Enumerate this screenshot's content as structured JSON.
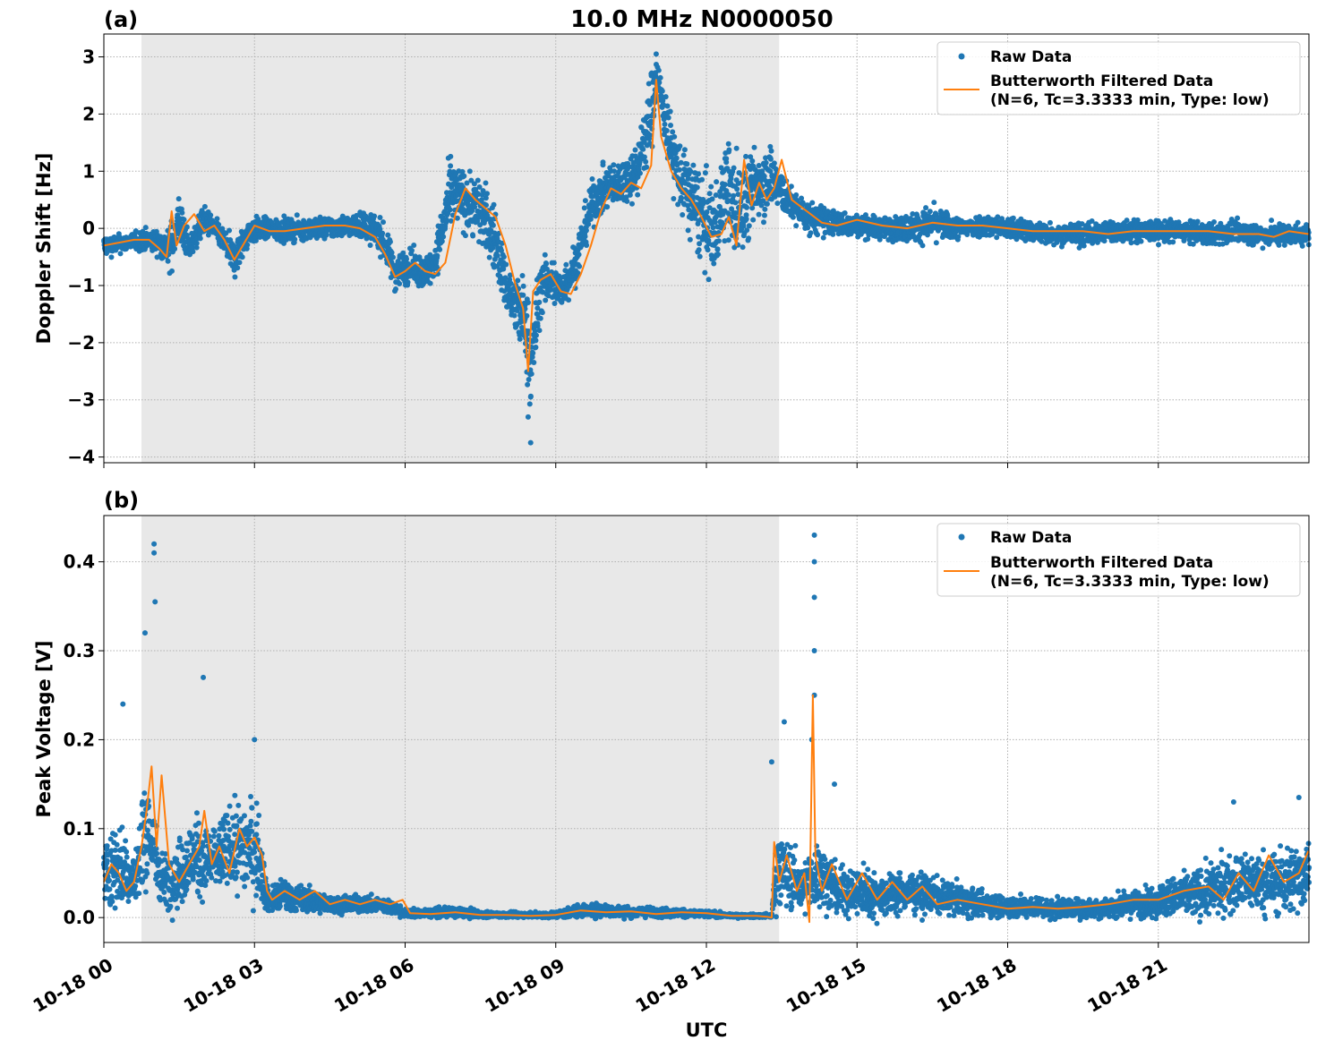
{
  "figure": {
    "title": "10.0 MHz N0000050",
    "xlabel": "UTC",
    "colors": {
      "raw": "#1f77b4",
      "filtered": "#ff7f0e",
      "shade": "#e8e8e8",
      "grid": "#b0b0b0"
    }
  },
  "chart_data": [
    {
      "type": "scatter",
      "panel_label": "(a)",
      "ylabel": "Doppler Shift [Hz]",
      "xlim_hours": [
        0,
        24
      ],
      "ylim": [
        -4.1,
        3.4
      ],
      "yticks": [
        -4,
        -3,
        -2,
        -1,
        0,
        1,
        2,
        3
      ],
      "ytick_labels": [
        "−4",
        "−3",
        "−2",
        "−1",
        "0",
        "1",
        "2",
        "3"
      ],
      "grid": true,
      "legend": {
        "placement": "top-right",
        "entries": [
          "Raw Data",
          "Butterworth Filtered Data",
          "(N=6, Tc=3.3333 min, Type: low)"
        ]
      },
      "shaded_interval_hours": [
        0.75,
        13.45
      ],
      "series": [
        {
          "name": "Raw Data",
          "style": "points",
          "x_hours": [
            0,
            0.5,
            0.8,
            1.1,
            1.3,
            1.5,
            1.7,
            2.0,
            2.3,
            2.6,
            2.9,
            3.2,
            3.6,
            4.0,
            4.4,
            4.8,
            5.2,
            5.5,
            5.8,
            6.1,
            6.4,
            6.6,
            6.9,
            7.2,
            7.5,
            7.8,
            8.0,
            8.2,
            8.4,
            8.5,
            8.7,
            8.9,
            9.1,
            9.4,
            9.7,
            10.0,
            10.3,
            10.6,
            10.9,
            11.0,
            11.3,
            11.5,
            11.8,
            12.0,
            12.2,
            12.4,
            12.6,
            12.8,
            13.0,
            13.3,
            13.6,
            14.0,
            14.5,
            15.0,
            15.5,
            16.0,
            16.5,
            17.0,
            17.5,
            18.0,
            18.5,
            19.0,
            19.5,
            20.0,
            20.5,
            21.0,
            21.5,
            22.0,
            22.5,
            23.0,
            23.5,
            23.99
          ],
          "y_center": [
            -0.3,
            -0.25,
            -0.2,
            -0.25,
            -0.4,
            0.15,
            -0.35,
            0.15,
            -0.1,
            -0.55,
            -0.05,
            0.0,
            -0.05,
            0.0,
            0.0,
            0.05,
            0.05,
            -0.1,
            -0.75,
            -0.65,
            -0.8,
            -0.55,
            0.6,
            0.5,
            0.3,
            -0.2,
            -1.0,
            -1.4,
            -1.6,
            -2.5,
            -1.0,
            -0.9,
            -1.1,
            -0.6,
            0.4,
            0.7,
            0.8,
            1.0,
            2.0,
            2.7,
            1.4,
            0.8,
            0.4,
            0.0,
            0.0,
            0.8,
            0.2,
            0.5,
            0.8,
            0.9,
            0.5,
            0.2,
            0.1,
            0.05,
            0.0,
            0.0,
            0.1,
            0.0,
            0.05,
            0.0,
            -0.05,
            -0.1,
            -0.1,
            -0.05,
            -0.05,
            -0.05,
            -0.05,
            -0.1,
            -0.05,
            -0.1,
            -0.1,
            -0.1
          ],
          "y_spread": [
            0.2,
            0.15,
            0.2,
            0.2,
            0.4,
            0.5,
            0.2,
            0.25,
            0.2,
            0.35,
            0.25,
            0.2,
            0.2,
            0.2,
            0.2,
            0.2,
            0.25,
            0.3,
            0.35,
            0.3,
            0.3,
            0.35,
            0.6,
            0.55,
            0.65,
            0.6,
            0.5,
            0.6,
            0.8,
            0.9,
            0.5,
            0.45,
            0.4,
            0.4,
            0.4,
            0.4,
            0.4,
            0.5,
            0.8,
            0.4,
            0.6,
            0.7,
            0.8,
            0.9,
            0.8,
            0.9,
            0.9,
            0.8,
            0.7,
            0.6,
            0.3,
            0.3,
            0.25,
            0.2,
            0.2,
            0.25,
            0.3,
            0.2,
            0.2,
            0.2,
            0.2,
            0.2,
            0.2,
            0.2,
            0.2,
            0.2,
            0.2,
            0.2,
            0.2,
            0.2,
            0.2,
            0.2
          ],
          "highlights": [
            {
              "x": 8.5,
              "y": -3.75
            },
            {
              "x": 11.0,
              "y": 3.05
            },
            {
              "x": 12.6,
              "y": 1.4
            },
            {
              "x": 8.45,
              "y": -3.3
            }
          ]
        },
        {
          "name": "Butterworth Filtered Data",
          "style": "line",
          "x_hours": [
            0,
            0.3,
            0.6,
            0.9,
            1.1,
            1.25,
            1.35,
            1.45,
            1.6,
            1.8,
            2.0,
            2.2,
            2.4,
            2.6,
            2.8,
            3.0,
            3.3,
            3.6,
            4.0,
            4.4,
            4.8,
            5.1,
            5.4,
            5.6,
            5.8,
            6.0,
            6.2,
            6.4,
            6.6,
            6.8,
            7.0,
            7.2,
            7.4,
            7.6,
            7.8,
            8.0,
            8.2,
            8.35,
            8.45,
            8.55,
            8.7,
            8.9,
            9.1,
            9.3,
            9.5,
            9.7,
            9.9,
            10.1,
            10.3,
            10.5,
            10.7,
            10.9,
            11.0,
            11.1,
            11.3,
            11.5,
            11.7,
            11.9,
            12.1,
            12.3,
            12.45,
            12.6,
            12.75,
            12.9,
            13.05,
            13.2,
            13.35,
            13.5,
            13.7,
            14.0,
            14.3,
            14.6,
            15.0,
            15.5,
            16.0,
            16.5,
            17.0,
            17.5,
            18.0,
            18.5,
            19.0,
            19.5,
            20.0,
            20.5,
            21.0,
            21.5,
            22.0,
            22.5,
            23.0,
            23.3,
            23.6,
            23.99
          ],
          "values": [
            -0.3,
            -0.25,
            -0.2,
            -0.2,
            -0.35,
            -0.5,
            0.3,
            -0.3,
            0.05,
            0.25,
            -0.05,
            0.05,
            -0.2,
            -0.55,
            -0.25,
            0.05,
            -0.05,
            -0.05,
            0.0,
            0.05,
            0.05,
            0.0,
            -0.15,
            -0.45,
            -0.85,
            -0.75,
            -0.6,
            -0.75,
            -0.8,
            -0.6,
            0.25,
            0.7,
            0.5,
            0.35,
            0.2,
            -0.3,
            -1.0,
            -1.4,
            -2.5,
            -1.1,
            -0.9,
            -0.8,
            -1.1,
            -1.15,
            -0.8,
            -0.3,
            0.3,
            0.7,
            0.6,
            0.8,
            0.7,
            1.1,
            2.6,
            1.6,
            1.0,
            0.7,
            0.5,
            0.2,
            -0.15,
            -0.1,
            0.2,
            -0.3,
            1.2,
            0.4,
            0.8,
            0.5,
            0.7,
            1.2,
            0.5,
            0.3,
            0.1,
            0.05,
            0.15,
            0.05,
            0.0,
            0.1,
            0.05,
            0.05,
            0.0,
            -0.05,
            -0.05,
            -0.05,
            -0.1,
            -0.05,
            -0.05,
            -0.05,
            -0.05,
            -0.1,
            -0.1,
            -0.15,
            -0.05,
            -0.1
          ]
        }
      ]
    },
    {
      "type": "scatter",
      "panel_label": "(b)",
      "ylabel": "Peak Voltage [V]",
      "xlim_hours": [
        0,
        24
      ],
      "ylim": [
        -0.028,
        0.452
      ],
      "yticks": [
        0.0,
        0.1,
        0.2,
        0.3,
        0.4
      ],
      "ytick_labels": [
        "0.0",
        "0.1",
        "0.2",
        "0.3",
        "0.4"
      ],
      "grid": true,
      "legend": {
        "placement": "top-right",
        "entries": [
          "Raw Data",
          "Butterworth Filtered Data",
          "(N=6, Tc=3.3333 min, Type: low)"
        ]
      },
      "shaded_interval_hours": [
        0.75,
        13.45
      ],
      "xticks_hours": [
        0,
        3,
        6,
        9,
        12,
        15,
        18,
        21
      ],
      "xtick_labels": [
        "10-18 00",
        "10-18 03",
        "10-18 06",
        "10-18 09",
        "10-18 12",
        "10-18 15",
        "10-18 18",
        "10-18 21"
      ],
      "series": [
        {
          "name": "Raw Data",
          "style": "points",
          "x_hours": [
            0,
            0.3,
            0.6,
            0.8,
            0.9,
            1.0,
            1.2,
            1.5,
            1.8,
            2.0,
            2.3,
            2.6,
            2.9,
            3.1,
            3.25,
            3.6,
            4.0,
            4.5,
            5.0,
            5.5,
            6.0,
            6.5,
            7.0,
            7.5,
            8.0,
            8.5,
            9.0,
            9.5,
            10.0,
            10.5,
            11.0,
            11.5,
            12.0,
            12.5,
            13.0,
            13.3,
            13.4,
            13.6,
            13.9,
            14.2,
            14.6,
            15.0,
            15.5,
            16.0,
            16.5,
            17.0,
            17.5,
            18.0,
            18.5,
            19.0,
            19.5,
            20.0,
            20.5,
            21.0,
            21.5,
            22.0,
            22.5,
            23.0,
            23.5,
            23.99
          ],
          "y_center": [
            0.05,
            0.06,
            0.04,
            0.09,
            0.1,
            0.07,
            0.04,
            0.05,
            0.07,
            0.06,
            0.07,
            0.08,
            0.08,
            0.07,
            0.02,
            0.025,
            0.02,
            0.015,
            0.015,
            0.015,
            0.005,
            0.005,
            0.006,
            0.004,
            0.003,
            0.003,
            0.003,
            0.008,
            0.008,
            0.006,
            0.006,
            0.005,
            0.004,
            0.002,
            0.002,
            0.002,
            0.06,
            0.05,
            0.03,
            0.05,
            0.03,
            0.03,
            0.025,
            0.03,
            0.025,
            0.02,
            0.015,
            0.012,
            0.012,
            0.01,
            0.01,
            0.012,
            0.015,
            0.02,
            0.025,
            0.03,
            0.04,
            0.04,
            0.04,
            0.05
          ],
          "y_spread": [
            0.04,
            0.05,
            0.04,
            0.06,
            0.06,
            0.05,
            0.03,
            0.04,
            0.05,
            0.04,
            0.04,
            0.05,
            0.06,
            0.05,
            0.015,
            0.02,
            0.015,
            0.01,
            0.01,
            0.01,
            0.005,
            0.005,
            0.006,
            0.004,
            0.003,
            0.003,
            0.004,
            0.008,
            0.008,
            0.006,
            0.006,
            0.005,
            0.004,
            0.002,
            0.002,
            0.002,
            0.05,
            0.04,
            0.03,
            0.04,
            0.03,
            0.03,
            0.025,
            0.025,
            0.02,
            0.018,
            0.015,
            0.012,
            0.012,
            0.012,
            0.012,
            0.012,
            0.015,
            0.02,
            0.025,
            0.03,
            0.035,
            0.035,
            0.04,
            0.04
          ],
          "highlights": [
            {
              "x": 0.82,
              "y": 0.32
            },
            {
              "x": 1.0,
              "y": 0.42
            },
            {
              "x": 1.0,
              "y": 0.41
            },
            {
              "x": 1.02,
              "y": 0.355
            },
            {
              "x": 0.38,
              "y": 0.24
            },
            {
              "x": 1.98,
              "y": 0.27
            },
            {
              "x": 3.0,
              "y": 0.2
            },
            {
              "x": 13.3,
              "y": 0.175
            },
            {
              "x": 13.55,
              "y": 0.22
            },
            {
              "x": 14.15,
              "y": 0.43
            },
            {
              "x": 14.15,
              "y": 0.4
            },
            {
              "x": 14.15,
              "y": 0.36
            },
            {
              "x": 14.15,
              "y": 0.3
            },
            {
              "x": 14.15,
              "y": 0.25
            },
            {
              "x": 14.1,
              "y": 0.2
            },
            {
              "x": 14.55,
              "y": 0.15
            },
            {
              "x": 22.5,
              "y": 0.13
            },
            {
              "x": 23.8,
              "y": 0.135
            }
          ]
        },
        {
          "name": "Butterworth Filtered Data",
          "style": "line",
          "x_hours": [
            0,
            0.15,
            0.3,
            0.45,
            0.6,
            0.75,
            0.85,
            0.95,
            1.05,
            1.15,
            1.3,
            1.5,
            1.7,
            1.9,
            2.0,
            2.15,
            2.3,
            2.5,
            2.7,
            2.85,
            3.0,
            3.15,
            3.25,
            3.35,
            3.6,
            3.9,
            4.2,
            4.5,
            4.8,
            5.1,
            5.4,
            5.7,
            5.95,
            6.1,
            6.5,
            7.0,
            7.5,
            8.0,
            8.5,
            9.0,
            9.5,
            10.0,
            10.5,
            11.0,
            11.5,
            12.0,
            12.5,
            13.0,
            13.2,
            13.3,
            13.35,
            13.45,
            13.6,
            13.8,
            13.95,
            14.05,
            14.12,
            14.17,
            14.3,
            14.5,
            14.8,
            15.1,
            15.4,
            15.7,
            16.0,
            16.3,
            16.6,
            17.0,
            17.5,
            18.0,
            18.5,
            19.0,
            19.5,
            20.0,
            20.5,
            21.0,
            21.5,
            22.0,
            22.3,
            22.6,
            22.9,
            23.2,
            23.5,
            23.8,
            23.99
          ],
          "values": [
            0.04,
            0.06,
            0.05,
            0.03,
            0.04,
            0.08,
            0.12,
            0.17,
            0.08,
            0.16,
            0.06,
            0.04,
            0.06,
            0.08,
            0.12,
            0.06,
            0.08,
            0.05,
            0.1,
            0.08,
            0.09,
            0.07,
            0.03,
            0.02,
            0.03,
            0.02,
            0.03,
            0.015,
            0.02,
            0.015,
            0.02,
            0.015,
            0.02,
            0.005,
            0.004,
            0.006,
            0.003,
            0.003,
            0.002,
            0.003,
            0.008,
            0.006,
            0.007,
            0.004,
            0.006,
            0.005,
            0.002,
            0.002,
            0.001,
            0.0,
            0.085,
            0.04,
            0.07,
            0.03,
            0.05,
            -0.005,
            0.25,
            0.07,
            0.03,
            0.06,
            0.02,
            0.05,
            0.02,
            0.04,
            0.02,
            0.035,
            0.015,
            0.02,
            0.015,
            0.01,
            0.012,
            0.01,
            0.012,
            0.015,
            0.02,
            0.02,
            0.03,
            0.035,
            0.02,
            0.05,
            0.03,
            0.07,
            0.04,
            0.05,
            0.075
          ]
        }
      ]
    }
  ]
}
